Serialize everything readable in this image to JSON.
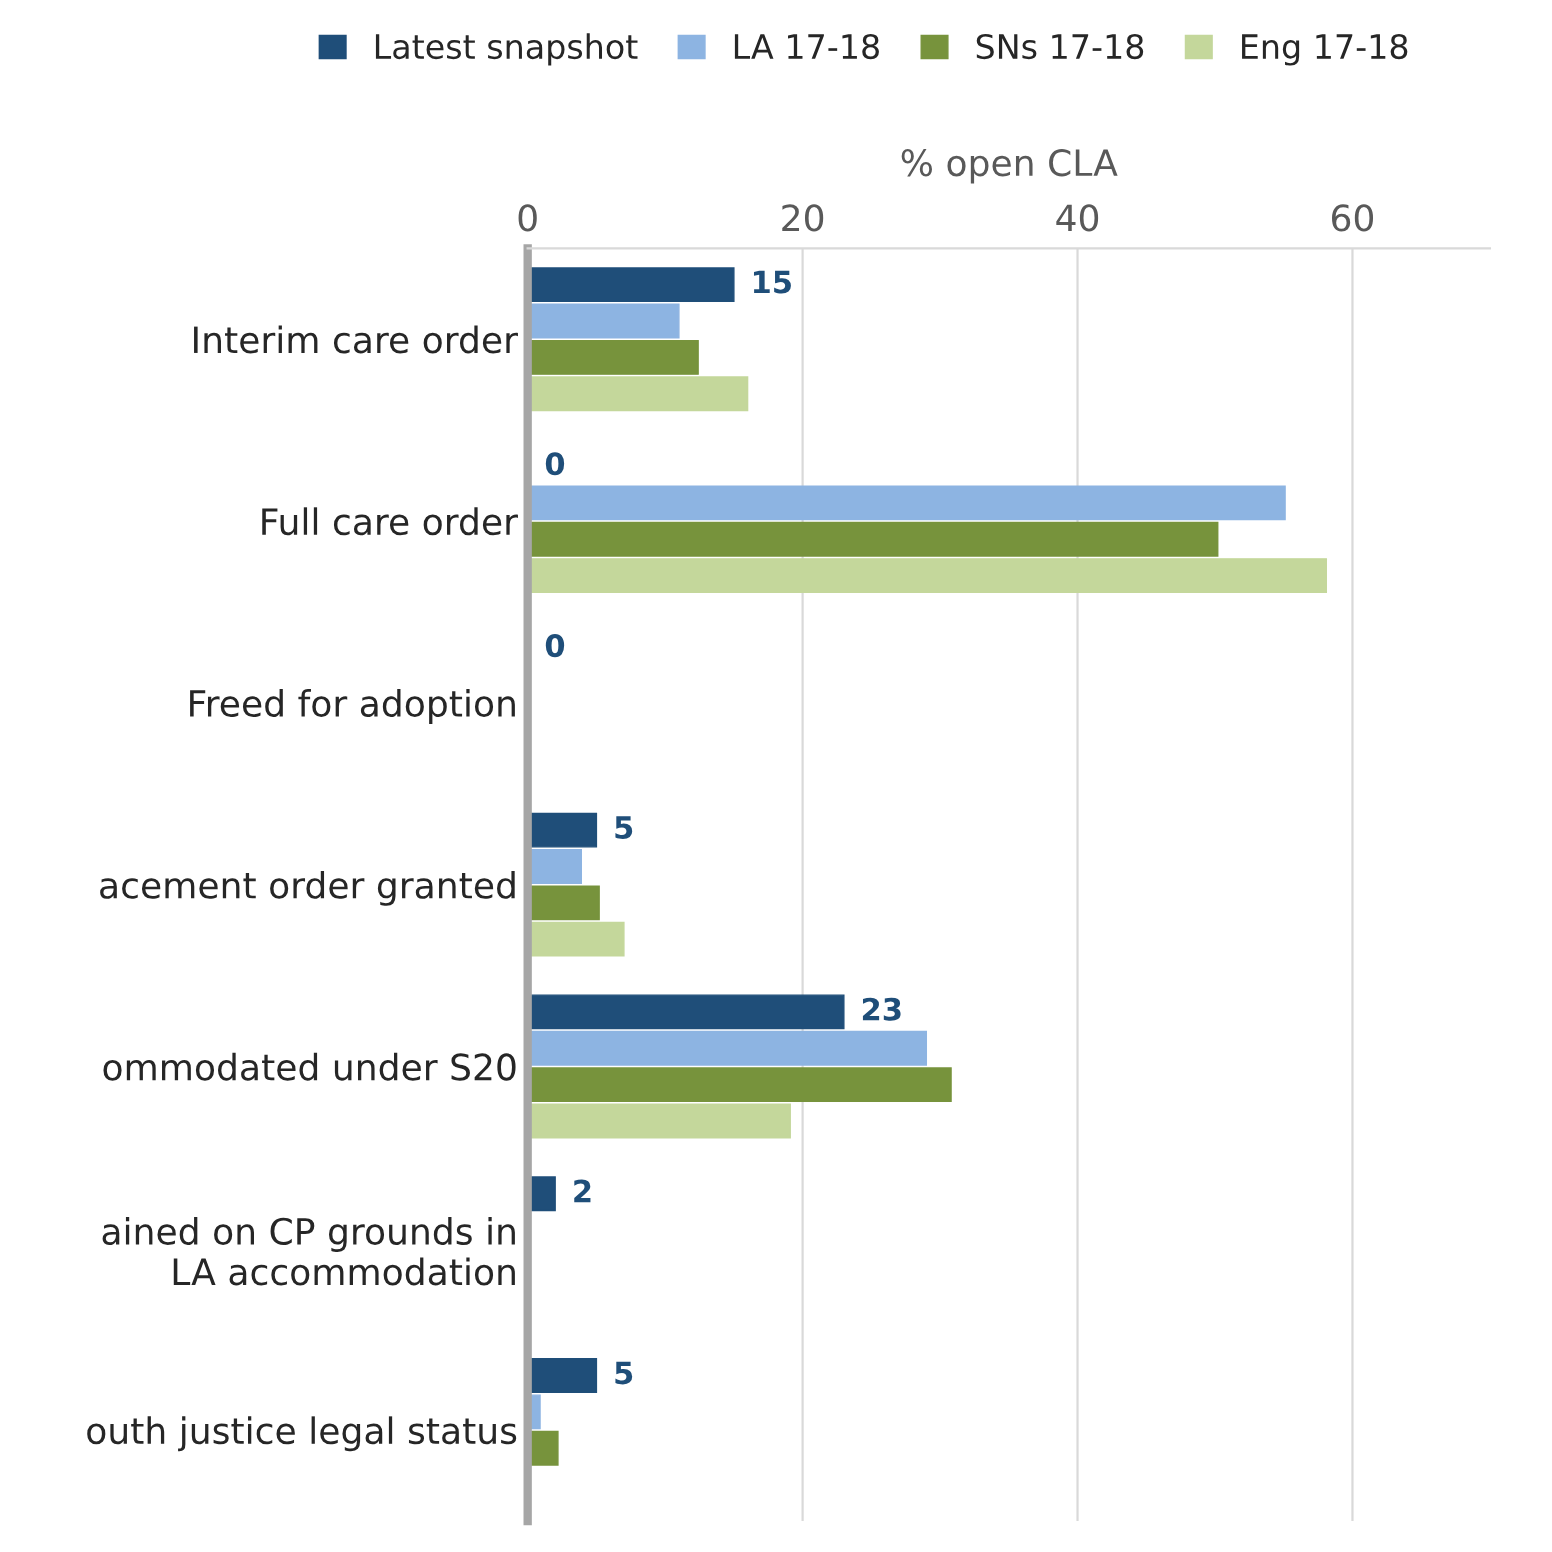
{
  "chart_data": {
    "type": "bar",
    "orientation": "horizontal",
    "xlabel": "% open CLA",
    "categories": [
      "Interim care order",
      "Full care order",
      "Freed for adoption",
      "acement order granted",
      "ommodated under S20",
      "ained on CP grounds in\nLA accommodation",
      "outh justice legal status"
    ],
    "series": [
      {
        "name": "Latest snapshot",
        "color": "#1f4e79",
        "values": [
          15,
          0,
          0,
          5,
          23,
          2,
          5
        ],
        "value_labels": [
          "15",
          "0",
          "0",
          "5",
          "23",
          "2",
          "5"
        ]
      },
      {
        "name": "LA 17-18",
        "color": "#8db4e2",
        "values": [
          11,
          55.1,
          null,
          3.9,
          29,
          null,
          0.9
        ]
      },
      {
        "name": "SNs 17-18",
        "color": "#77933c",
        "values": [
          12.4,
          50.2,
          null,
          5.2,
          30.8,
          null,
          2.2
        ]
      },
      {
        "name": "Eng 17-18",
        "color": "#c4d79b",
        "values": [
          16,
          58.1,
          null,
          7,
          19.1,
          null,
          null
        ]
      }
    ],
    "xlim": [
      0,
      70
    ],
    "xticks": [
      0,
      20,
      40,
      60
    ],
    "grid": "x",
    "legend": "top"
  }
}
